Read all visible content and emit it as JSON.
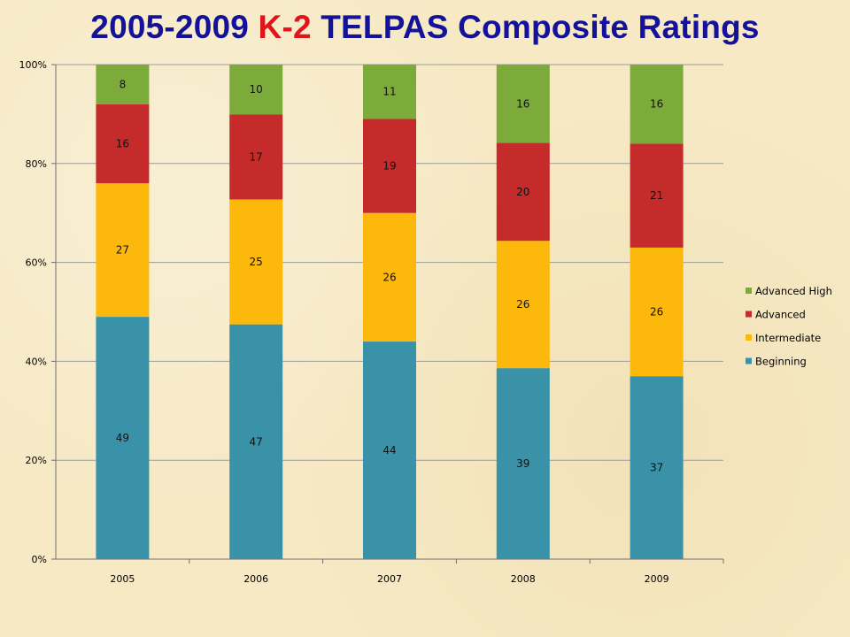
{
  "title": {
    "part1": "2005-2009 ",
    "part2": "K-2",
    "part3": " TELPAS Composite Ratings"
  },
  "colors": {
    "title_blue": "#14129a",
    "title_red": "#e0151b"
  },
  "chart_data": {
    "type": "bar",
    "stacked": true,
    "percent_axis": true,
    "categories": [
      "2005",
      "2006",
      "2007",
      "2008",
      "2009"
    ],
    "series": [
      {
        "name": "Beginning",
        "values": [
          49,
          47,
          44,
          39,
          37
        ],
        "color": "#3a92a8"
      },
      {
        "name": "Intermediate",
        "values": [
          27,
          25,
          26,
          26,
          26
        ],
        "color": "#fcb90c"
      },
      {
        "name": "Advanced",
        "values": [
          16,
          17,
          19,
          20,
          21
        ],
        "color": "#c52b2b"
      },
      {
        "name": "Advanced High",
        "values": [
          8,
          10,
          11,
          16,
          16
        ],
        "color": "#7cab3c"
      }
    ],
    "y_ticks": [
      "0%",
      "20%",
      "40%",
      "60%",
      "80%",
      "100%"
    ],
    "ylim": [
      0,
      100
    ],
    "grid": true,
    "legend_position": "right",
    "legend_order": [
      "Advanced High",
      "Advanced",
      "Intermediate",
      "Beginning"
    ]
  }
}
